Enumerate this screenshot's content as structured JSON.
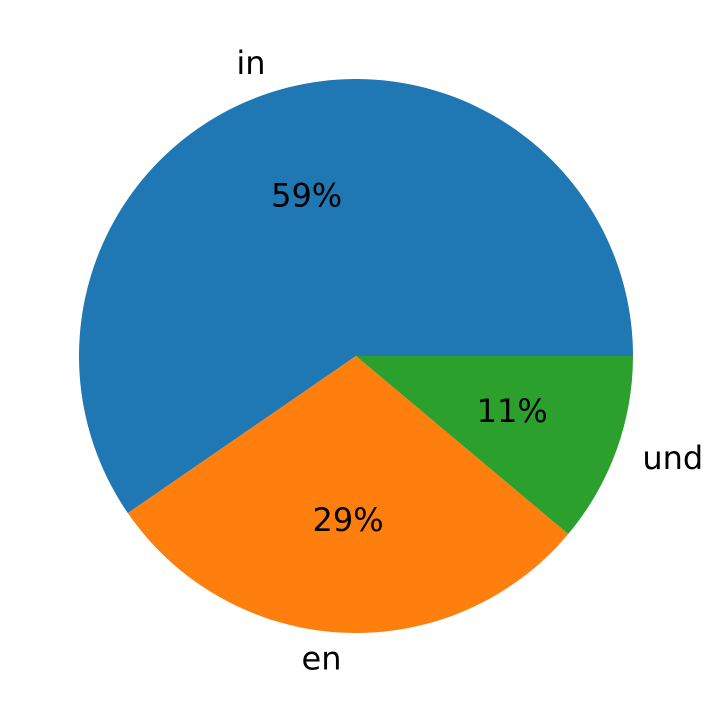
{
  "chart_data": {
    "type": "pie",
    "categories": [
      "in",
      "en",
      "und"
    ],
    "values": [
      59,
      29,
      11
    ],
    "value_labels": [
      "59%",
      "29%",
      "11%"
    ],
    "colors": [
      "#1f77b4",
      "#ff7f0e",
      "#2ca02c"
    ],
    "start_angle": 0,
    "direction": "counterclockwise"
  }
}
